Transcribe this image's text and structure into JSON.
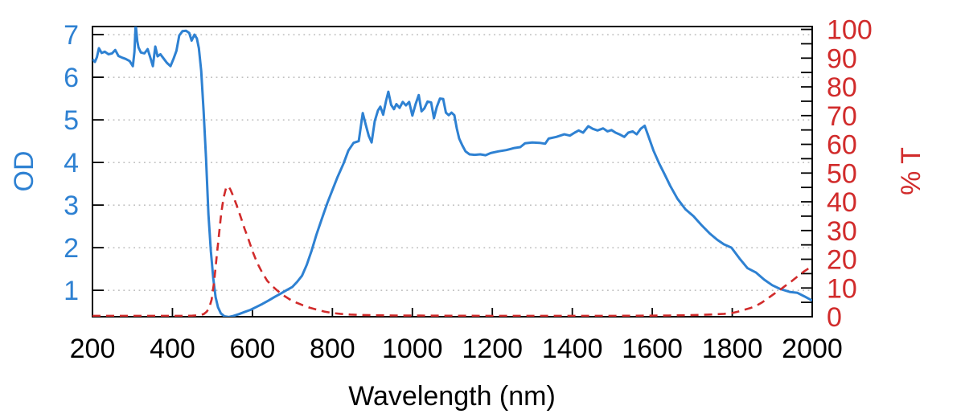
{
  "chart_data": {
    "type": "line",
    "title": "",
    "xlabel": "Wavelength (nm)",
    "grid": "horizontal-dotted",
    "grid_color": "#9a9a9a",
    "legend": "none",
    "background": "#ffffff",
    "border_color": "#000000",
    "x_axis": {
      "range": [
        200,
        2000
      ],
      "ticks": [
        200,
        400,
        600,
        800,
        1000,
        1200,
        1400,
        1600,
        1800,
        2000
      ],
      "label_color": "#000000"
    },
    "left_axis": {
      "label": "OD",
      "color": "#2e81d2",
      "range": [
        0.38,
        7.19
      ],
      "ticks": [
        1,
        2,
        3,
        4,
        5,
        6,
        7
      ]
    },
    "right_axis": {
      "label": "% T",
      "color": "#d12b2b",
      "range": [
        0,
        101
      ],
      "ticks": [
        0,
        10,
        20,
        30,
        40,
        50,
        60,
        70,
        80,
        90,
        100
      ],
      "minor_tick_step": 5
    },
    "series": [
      {
        "name": "OD",
        "axis": "left",
        "color": "#2e81d2",
        "line_style": "solid",
        "points": [
          [
            200,
            6.42
          ],
          [
            206,
            6.36
          ],
          [
            211,
            6.47
          ],
          [
            216,
            6.68
          ],
          [
            223,
            6.57
          ],
          [
            231,
            6.6
          ],
          [
            240,
            6.54
          ],
          [
            249,
            6.56
          ],
          [
            257,
            6.64
          ],
          [
            265,
            6.5
          ],
          [
            274,
            6.46
          ],
          [
            283,
            6.43
          ],
          [
            293,
            6.38
          ],
          [
            301,
            6.26
          ],
          [
            305,
            6.6
          ],
          [
            308,
            7.25
          ],
          [
            312,
            6.85
          ],
          [
            315,
            6.7
          ],
          [
            321,
            6.58
          ],
          [
            330,
            6.56
          ],
          [
            338,
            6.66
          ],
          [
            346,
            6.42
          ],
          [
            351,
            6.26
          ],
          [
            357,
            6.72
          ],
          [
            363,
            6.49
          ],
          [
            370,
            6.54
          ],
          [
            377,
            6.45
          ],
          [
            386,
            6.34
          ],
          [
            395,
            6.26
          ],
          [
            403,
            6.44
          ],
          [
            410,
            6.62
          ],
          [
            417,
            6.98
          ],
          [
            425,
            7.08
          ],
          [
            434,
            7.09
          ],
          [
            442,
            7.04
          ],
          [
            448,
            6.86
          ],
          [
            455,
            7.0
          ],
          [
            461,
            6.91
          ],
          [
            466,
            6.68
          ],
          [
            472,
            6.15
          ],
          [
            478,
            5.2
          ],
          [
            484,
            4.1
          ],
          [
            490,
            2.78
          ],
          [
            496,
            1.92
          ],
          [
            502,
            1.28
          ],
          [
            508,
            0.84
          ],
          [
            514,
            0.6
          ],
          [
            521,
            0.46
          ],
          [
            530,
            0.39
          ],
          [
            541,
            0.375
          ],
          [
            553,
            0.4
          ],
          [
            566,
            0.44
          ],
          [
            580,
            0.49
          ],
          [
            595,
            0.54
          ],
          [
            610,
            0.61
          ],
          [
            625,
            0.68
          ],
          [
            640,
            0.76
          ],
          [
            655,
            0.84
          ],
          [
            670,
            0.92
          ],
          [
            685,
            1.0
          ],
          [
            700,
            1.08
          ],
          [
            712,
            1.2
          ],
          [
            724,
            1.34
          ],
          [
            736,
            1.6
          ],
          [
            748,
            1.93
          ],
          [
            760,
            2.3
          ],
          [
            773,
            2.66
          ],
          [
            787,
            3.04
          ],
          [
            800,
            3.35
          ],
          [
            813,
            3.66
          ],
          [
            828,
            3.98
          ],
          [
            840,
            4.28
          ],
          [
            853,
            4.46
          ],
          [
            866,
            4.5
          ],
          [
            876,
            5.16
          ],
          [
            883,
            4.9
          ],
          [
            891,
            4.62
          ],
          [
            898,
            4.47
          ],
          [
            906,
            4.97
          ],
          [
            914,
            5.22
          ],
          [
            920,
            5.31
          ],
          [
            927,
            5.12
          ],
          [
            934,
            5.44
          ],
          [
            940,
            5.66
          ],
          [
            947,
            5.35
          ],
          [
            954,
            5.25
          ],
          [
            960,
            5.37
          ],
          [
            968,
            5.28
          ],
          [
            976,
            5.42
          ],
          [
            984,
            5.34
          ],
          [
            992,
            5.42
          ],
          [
            1000,
            5.1
          ],
          [
            1008,
            5.37
          ],
          [
            1016,
            5.58
          ],
          [
            1023,
            5.2
          ],
          [
            1030,
            5.27
          ],
          [
            1038,
            5.43
          ],
          [
            1047,
            5.41
          ],
          [
            1054,
            5.04
          ],
          [
            1061,
            5.3
          ],
          [
            1069,
            5.5
          ],
          [
            1077,
            5.49
          ],
          [
            1084,
            5.17
          ],
          [
            1091,
            5.11
          ],
          [
            1098,
            5.17
          ],
          [
            1105,
            5.11
          ],
          [
            1111,
            4.8
          ],
          [
            1117,
            4.56
          ],
          [
            1125,
            4.4
          ],
          [
            1133,
            4.26
          ],
          [
            1143,
            4.19
          ],
          [
            1156,
            4.18
          ],
          [
            1170,
            4.19
          ],
          [
            1183,
            4.17
          ],
          [
            1196,
            4.22
          ],
          [
            1215,
            4.26
          ],
          [
            1235,
            4.29
          ],
          [
            1255,
            4.34
          ],
          [
            1270,
            4.36
          ],
          [
            1282,
            4.45
          ],
          [
            1300,
            4.47
          ],
          [
            1318,
            4.46
          ],
          [
            1332,
            4.44
          ],
          [
            1341,
            4.56
          ],
          [
            1360,
            4.6
          ],
          [
            1380,
            4.66
          ],
          [
            1394,
            4.63
          ],
          [
            1406,
            4.7
          ],
          [
            1416,
            4.75
          ],
          [
            1427,
            4.7
          ],
          [
            1440,
            4.85
          ],
          [
            1451,
            4.79
          ],
          [
            1463,
            4.75
          ],
          [
            1477,
            4.8
          ],
          [
            1488,
            4.73
          ],
          [
            1498,
            4.76
          ],
          [
            1508,
            4.7
          ],
          [
            1518,
            4.66
          ],
          [
            1530,
            4.6
          ],
          [
            1540,
            4.7
          ],
          [
            1551,
            4.73
          ],
          [
            1561,
            4.66
          ],
          [
            1571,
            4.79
          ],
          [
            1581,
            4.86
          ],
          [
            1591,
            4.6
          ],
          [
            1603,
            4.28
          ],
          [
            1617,
            3.98
          ],
          [
            1631,
            3.72
          ],
          [
            1645,
            3.45
          ],
          [
            1663,
            3.15
          ],
          [
            1683,
            2.9
          ],
          [
            1703,
            2.74
          ],
          [
            1723,
            2.53
          ],
          [
            1743,
            2.34
          ],
          [
            1762,
            2.19
          ],
          [
            1779,
            2.08
          ],
          [
            1798,
            2.0
          ],
          [
            1818,
            1.75
          ],
          [
            1838,
            1.52
          ],
          [
            1859,
            1.42
          ],
          [
            1880,
            1.25
          ],
          [
            1900,
            1.12
          ],
          [
            1920,
            1.03
          ],
          [
            1945,
            0.96
          ],
          [
            1963,
            0.94
          ],
          [
            1980,
            0.86
          ],
          [
            2000,
            0.76
          ]
        ]
      },
      {
        "name": "% T",
        "axis": "right",
        "color": "#d12b2b",
        "line_style": "dashed",
        "points": [
          [
            200,
            0.3
          ],
          [
            260,
            0.3
          ],
          [
            320,
            0.3
          ],
          [
            380,
            0.3
          ],
          [
            430,
            0.3
          ],
          [
            450,
            0.35
          ],
          [
            465,
            0.5
          ],
          [
            478,
            0.9
          ],
          [
            486,
            1.8
          ],
          [
            492,
            3.2
          ],
          [
            498,
            6.0
          ],
          [
            504,
            12.0
          ],
          [
            510,
            20.0
          ],
          [
            516,
            28.0
          ],
          [
            522,
            36.0
          ],
          [
            528,
            41.5
          ],
          [
            534,
            44.8
          ],
          [
            539,
            45.5
          ],
          [
            545,
            44.3
          ],
          [
            552,
            42.0
          ],
          [
            560,
            39.0
          ],
          [
            570,
            35.0
          ],
          [
            580,
            30.8
          ],
          [
            590,
            27.0
          ],
          [
            601,
            22.5
          ],
          [
            612,
            18.7
          ],
          [
            624,
            15.5
          ],
          [
            637,
            12.5
          ],
          [
            650,
            10.6
          ],
          [
            663,
            9.0
          ],
          [
            678,
            7.4
          ],
          [
            694,
            6.0
          ],
          [
            710,
            4.9
          ],
          [
            726,
            4.0
          ],
          [
            744,
            3.1
          ],
          [
            762,
            2.4
          ],
          [
            780,
            1.8
          ],
          [
            800,
            1.3
          ],
          [
            820,
            1.0
          ],
          [
            845,
            0.75
          ],
          [
            875,
            0.6
          ],
          [
            910,
            0.5
          ],
          [
            960,
            0.42
          ],
          [
            1020,
            0.38
          ],
          [
            1100,
            0.34
          ],
          [
            1200,
            0.32
          ],
          [
            1300,
            0.3
          ],
          [
            1400,
            0.3
          ],
          [
            1500,
            0.32
          ],
          [
            1580,
            0.36
          ],
          [
            1640,
            0.42
          ],
          [
            1690,
            0.52
          ],
          [
            1725,
            0.65
          ],
          [
            1755,
            0.8
          ],
          [
            1780,
            1.0
          ],
          [
            1800,
            1.3
          ],
          [
            1815,
            1.8
          ],
          [
            1830,
            2.4
          ],
          [
            1845,
            3.0
          ],
          [
            1860,
            3.8
          ],
          [
            1875,
            5.0
          ],
          [
            1890,
            6.5
          ],
          [
            1905,
            8.0
          ],
          [
            1920,
            9.4
          ],
          [
            1935,
            11.0
          ],
          [
            1950,
            12.5
          ],
          [
            1965,
            14.2
          ],
          [
            1980,
            15.8
          ],
          [
            1990,
            16.7
          ],
          [
            2000,
            17.5
          ]
        ]
      }
    ]
  }
}
